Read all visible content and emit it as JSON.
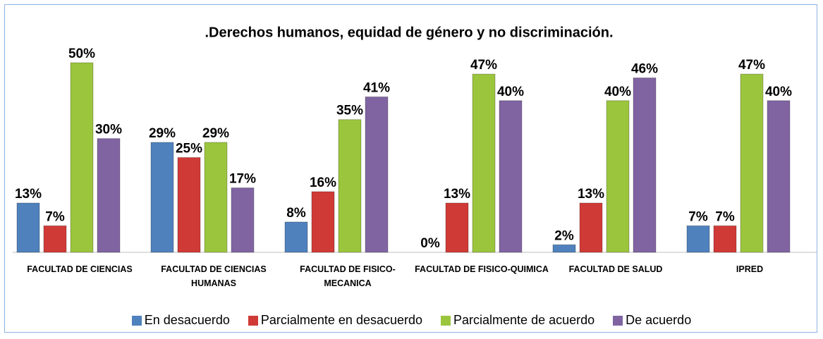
{
  "chart_data": {
    "type": "bar",
    "title": ".Derechos humanos, equidad de género y no discriminación.",
    "categories": [
      "FACULTAD DE CIENCIAS",
      "FACULTAD DE CIENCIAS HUMANAS",
      "FACULTAD DE FISICO-MECANICA",
      "FACULTAD DE FISICO-QUIMICA",
      "FACULTAD DE SALUD",
      "IPRED"
    ],
    "series": [
      {
        "name": "En desacuerdo",
        "color": "#4f81bd",
        "values": [
          13,
          29,
          8,
          0,
          2,
          7
        ],
        "value_labels": [
          "13%",
          "29%",
          "8%",
          "0%",
          "2%",
          "7%"
        ]
      },
      {
        "name": "Parcialmente en desacuerdo",
        "color": "#d03a36",
        "values": [
          7,
          25,
          16,
          13,
          13,
          7
        ],
        "value_labels": [
          "7%",
          "25%",
          "16%",
          "13%",
          "13%",
          "7%"
        ]
      },
      {
        "name": "Parcialmente de acuerdo",
        "color": "#9bc53d",
        "values": [
          50,
          29,
          35,
          47,
          40,
          47
        ],
        "value_labels": [
          "50%",
          "29%",
          "35%",
          "47%",
          "40%",
          "47%"
        ]
      },
      {
        "name": "De acuerdo",
        "color": "#8064a2",
        "values": [
          30,
          17,
          41,
          40,
          46,
          40
        ],
        "value_labels": [
          "30%",
          "17%",
          "41%",
          "40%",
          "46%",
          "40%"
        ]
      }
    ]
  }
}
